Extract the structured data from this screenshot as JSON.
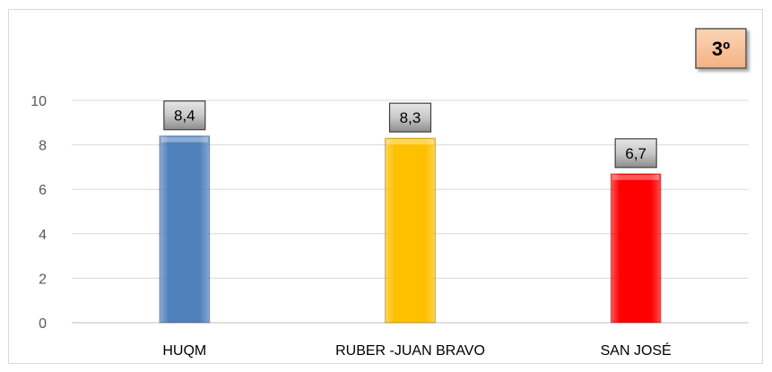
{
  "badge": {
    "text": "3º",
    "color": "#f4b183"
  },
  "chart_data": {
    "type": "bar",
    "categories": [
      "HUQM",
      "RUBER -JUAN BRAVO",
      "SAN JOSÉ"
    ],
    "values": [
      8.4,
      8.3,
      6.7
    ],
    "data_labels": [
      "8,4",
      "8,3",
      "6,7"
    ],
    "bar_colors": [
      "#4f81bd",
      "#ffc000",
      "#ff0000"
    ],
    "title": "",
    "xlabel": "",
    "ylabel": "",
    "ylim": [
      0,
      10
    ],
    "yticks": [
      0,
      2,
      4,
      6,
      8,
      10
    ],
    "grid": true,
    "legend": "none"
  }
}
